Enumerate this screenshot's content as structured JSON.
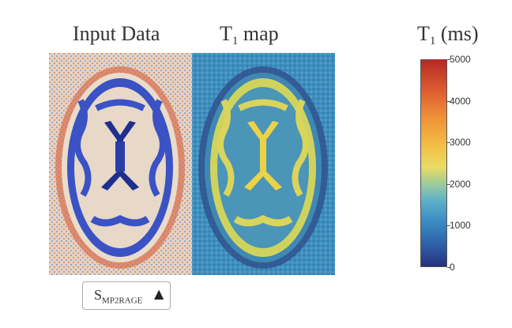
{
  "titles": {
    "input_main": "Input Data",
    "map_main": "T",
    "map_sub": "1",
    "map_rest": " map",
    "cbar_main": "T",
    "cbar_sub": "1",
    "cbar_rest": " (ms)"
  },
  "colorbar": {
    "ticks": [
      "5000",
      "4000",
      "3000",
      "2000",
      "1000",
      "0"
    ],
    "range": [
      0,
      5000
    ],
    "colormap": "RdYlBu (reversed)"
  },
  "selector": {
    "label_main": "S",
    "label_sub": "MP2RAGE",
    "arrow": "▲"
  },
  "colors": {
    "input_bg": "#e9d9c6",
    "input_brain": "#3e56c8",
    "map_bg": "#3f8fc0",
    "map_wm": "#4a95b8",
    "map_gm": "#d9d45c",
    "map_csf": "#e8d04a"
  }
}
